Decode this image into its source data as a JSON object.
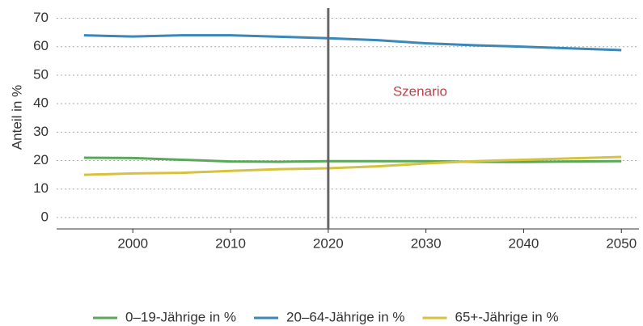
{
  "chart_data": {
    "type": "line",
    "y_label": "Anteil in %",
    "x": [
      1995,
      2000,
      2005,
      2010,
      2015,
      2020,
      2025,
      2030,
      2035,
      2040,
      2045,
      2050
    ],
    "series": [
      {
        "name": "0–19-Jährige in %",
        "color": "#5aa85a",
        "values": [
          21,
          20.9,
          20.3,
          19.7,
          19.6,
          19.8,
          19.8,
          19.8,
          19.6,
          19.5,
          19.7,
          19.8
        ]
      },
      {
        "name": "20–64-Jährige in %",
        "color": "#3a87b8",
        "values": [
          64,
          63.6,
          64,
          64,
          63.5,
          63,
          62.3,
          61.2,
          60.5,
          60,
          59.4,
          58.8
        ]
      },
      {
        "name": "65+-Jährige in %",
        "color": "#d6c23e",
        "values": [
          15,
          15.5,
          15.7,
          16.4,
          17,
          17.3,
          18,
          19,
          19.8,
          20.3,
          20.8,
          21.3
        ]
      }
    ],
    "xlim": [
      1992.2,
      2051.8
    ],
    "ylim": [
      -4,
      73
    ],
    "xticks": [
      2000,
      2010,
      2020,
      2030,
      2040,
      2050
    ],
    "yticks": [
      0,
      10,
      20,
      30,
      40,
      50,
      60,
      70
    ],
    "grid": true,
    "annotation": {
      "x": 2020,
      "label": "Szenario",
      "color": "#c0404a"
    }
  }
}
